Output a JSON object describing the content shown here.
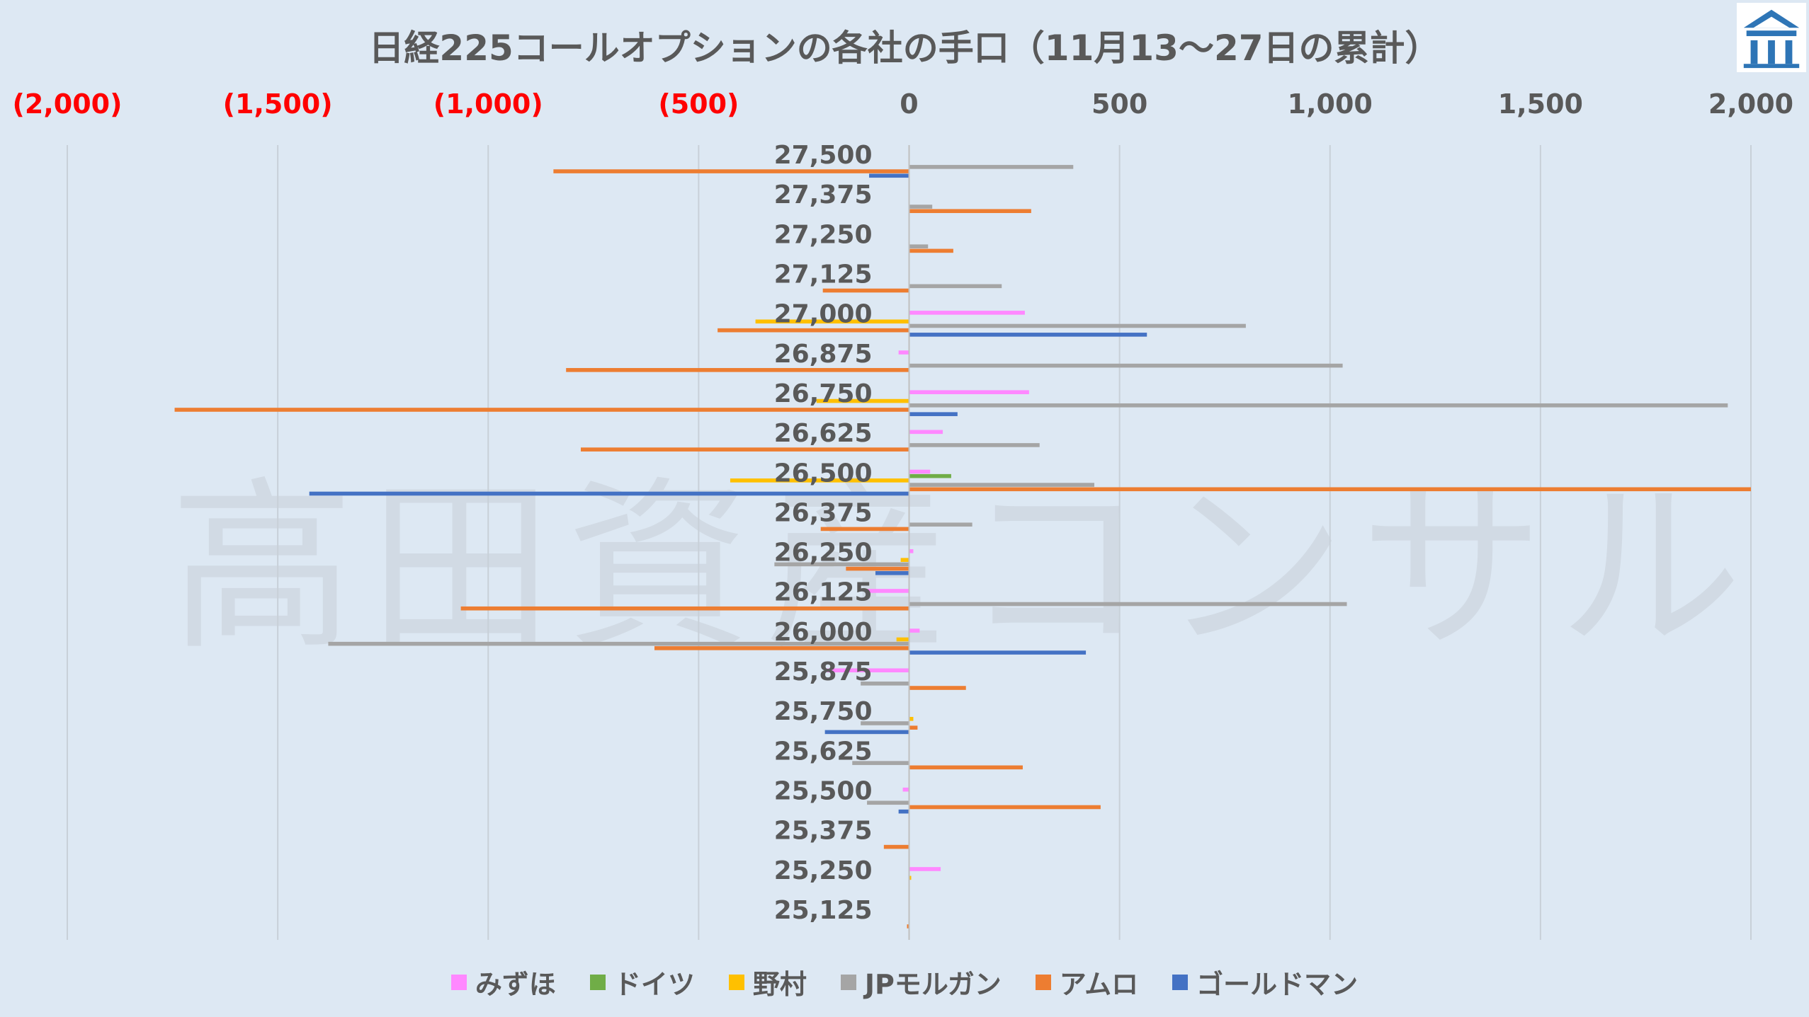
{
  "chart_data": {
    "type": "bar",
    "orientation": "horizontal",
    "title": "日経225コールオプションの各社の手口（11月13～27日の累計）",
    "watermark": "高田資産コンサル",
    "xlim": [
      -2000,
      2000
    ],
    "x_ticks": [
      {
        "value": -2000,
        "label": "(2,000)",
        "color": "#ff0000"
      },
      {
        "value": -1500,
        "label": "(1,500)",
        "color": "#ff0000"
      },
      {
        "value": -1000,
        "label": "(1,000)",
        "color": "#ff0000"
      },
      {
        "value": -500,
        "label": "(500)",
        "color": "#ff0000"
      },
      {
        "value": 0,
        "label": "0",
        "color": "#595959"
      },
      {
        "value": 500,
        "label": "500",
        "color": "#595959"
      },
      {
        "value": 1000,
        "label": "1,000",
        "color": "#595959"
      },
      {
        "value": 1500,
        "label": "1,500",
        "color": "#595959"
      },
      {
        "value": 2000,
        "label": "2,000",
        "color": "#595959"
      }
    ],
    "grid": true,
    "legend_position": "bottom",
    "categories": [
      "27,500",
      "27,375",
      "27,250",
      "27,125",
      "27,000",
      "26,875",
      "26,750",
      "26,625",
      "26,500",
      "26,375",
      "26,250",
      "26,125",
      "26,000",
      "25,875",
      "25,750",
      "25,625",
      "25,500",
      "25,375",
      "25,250",
      "25,125"
    ],
    "series": [
      {
        "name": "みずほ",
        "color": "#ff88ff",
        "values": [
          0,
          0,
          0,
          0,
          275,
          -25,
          285,
          80,
          50,
          0,
          10,
          -100,
          25,
          -195,
          0,
          0,
          -15,
          0,
          75,
          0
        ]
      },
      {
        "name": "ドイツ",
        "color": "#70ad47",
        "values": [
          0,
          0,
          0,
          0,
          0,
          0,
          0,
          0,
          100,
          0,
          0,
          0,
          0,
          0,
          0,
          0,
          0,
          0,
          0,
          0
        ]
      },
      {
        "name": "野村",
        "color": "#ffc000",
        "values": [
          0,
          0,
          0,
          0,
          -365,
          0,
          -220,
          0,
          -425,
          0,
          -20,
          0,
          -30,
          0,
          10,
          0,
          0,
          0,
          5,
          0
        ]
      },
      {
        "name": "JPモルガン",
        "color": "#a5a5a5",
        "values": [
          390,
          55,
          45,
          220,
          800,
          1030,
          1945,
          310,
          440,
          150,
          -320,
          1040,
          -1380,
          -115,
          -115,
          -135,
          -100,
          0,
          0,
          0
        ]
      },
      {
        "name": "アムロ",
        "color": "#ed7d31",
        "values": [
          -845,
          290,
          105,
          -205,
          -455,
          -815,
          -1745,
          -780,
          2000,
          -210,
          -150,
          -1065,
          -605,
          135,
          20,
          270,
          455,
          -60,
          0,
          -5
        ]
      },
      {
        "name": "ゴールドマン",
        "color": "#4472c4",
        "values": [
          -95,
          0,
          0,
          0,
          565,
          0,
          115,
          0,
          -1425,
          0,
          -80,
          0,
          420,
          0,
          -200,
          0,
          -25,
          0,
          0,
          0
        ]
      }
    ]
  }
}
